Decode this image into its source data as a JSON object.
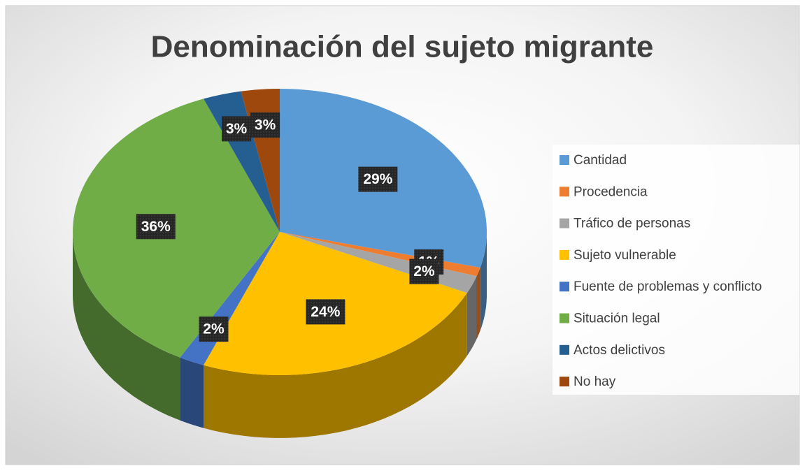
{
  "chart_data": {
    "type": "pie",
    "title": "Denominación del sujeto migrante",
    "categories": [
      "Cantidad",
      "Procedencia",
      "Tráfico de personas",
      "Sujeto vulnerable",
      "Fuente de problemas y conflicto",
      "Situación legal",
      "Actos delictivos",
      "No hay"
    ],
    "values": [
      29,
      1,
      2,
      24,
      2,
      36,
      3,
      3
    ],
    "value_labels": [
      "29%",
      "1%",
      "2%",
      "24%",
      "2%",
      "36%",
      "3%",
      "3%"
    ],
    "colors": [
      "#5b9bd5",
      "#ed7d31",
      "#a5a5a5",
      "#ffc000",
      "#4472c4",
      "#70ad47",
      "#255e91",
      "#9e480e"
    ],
    "legend": "right"
  }
}
